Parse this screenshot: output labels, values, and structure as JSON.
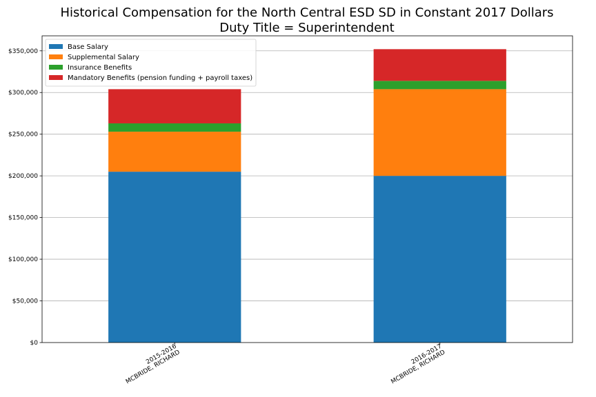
{
  "title_line1": "Historical Compensation for the North Central ESD SD in Constant 2017 Dollars",
  "title_line2": "Duty Title = Superintendent",
  "chart_data": {
    "type": "bar",
    "stacked": true,
    "title": "Historical Compensation for the North Central ESD SD in Constant 2017 Dollars\nDuty Title = Superintendent",
    "categories": [
      [
        "2015-2016",
        "MCBRIDE, RICHARD"
      ],
      [
        "2016-2017",
        "MCBRIDE, RICHARD"
      ]
    ],
    "series": [
      {
        "name": "Base Salary",
        "color": "#1f77b4",
        "values": [
          205000,
          200000
        ]
      },
      {
        "name": "Supplemental Salary",
        "color": "#ff7f0e",
        "values": [
          48000,
          104000
        ]
      },
      {
        "name": "Insurance Benefits",
        "color": "#2ca02c",
        "values": [
          10000,
          10000
        ]
      },
      {
        "name": "Mandatory Benefits (pension funding + payroll taxes)",
        "color": "#d62728",
        "values": [
          41000,
          38000
        ]
      }
    ],
    "ylim": [
      0,
      368000
    ],
    "yticks": [
      0,
      50000,
      100000,
      150000,
      200000,
      250000,
      300000,
      350000
    ],
    "ytick_labels": [
      "$0",
      "$50,000",
      "$100,000",
      "$150,000",
      "$200,000",
      "$250,000",
      "$300,000",
      "$350,000"
    ],
    "grid": "y",
    "legend_position": "upper-left",
    "xlabel": "",
    "ylabel": ""
  }
}
